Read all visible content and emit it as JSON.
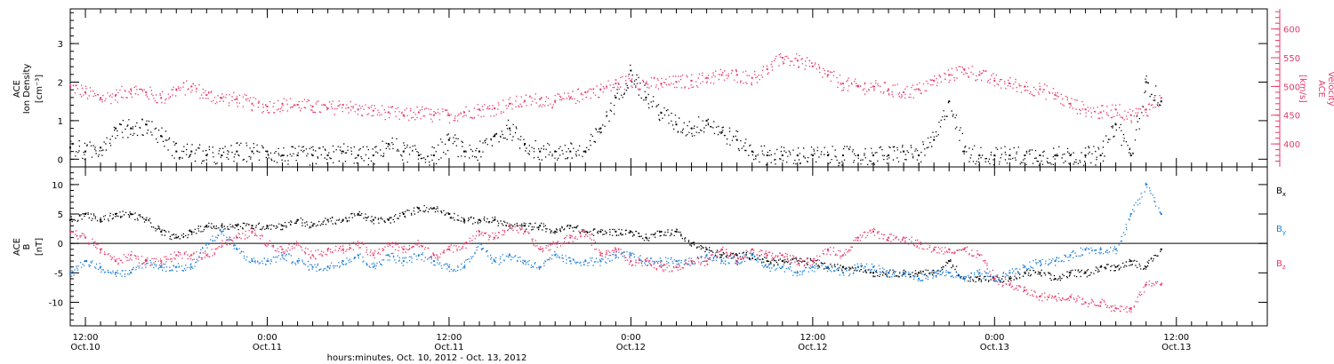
{
  "colors": {
    "ink": "#000000",
    "velocity": "#e8396a",
    "by": "#1e7fd9",
    "bz": "#e8396a",
    "bx": "#000000"
  },
  "panels": {
    "top": {
      "left_label_lines": [
        "ACE",
        "Ion Density"
      ],
      "left_unit": "[cm⁻³]",
      "right_label_lines": [
        "ACE",
        "Velocity"
      ],
      "right_unit": "[km/s]"
    },
    "bottom": {
      "label_lines": [
        "ACE",
        "B"
      ],
      "unit": "[nT]",
      "legend": [
        {
          "label": "B",
          "sub": "x",
          "color": "#000000"
        },
        {
          "label": "B",
          "sub": "y",
          "color": "#1e7fd9"
        },
        {
          "label": "B",
          "sub": "z",
          "color": "#e8396a"
        }
      ]
    }
  },
  "x_axis": {
    "title": "hours:minutes, Oct. 10, 2012 - Oct. 13, 2012",
    "ticks": [
      {
        "h": 0,
        "time": "12:00",
        "date": "Oct.10"
      },
      {
        "h": 12,
        "time": "0:00",
        "date": "Oct.11"
      },
      {
        "h": 24,
        "time": "12:00",
        "date": "Oct.11"
      },
      {
        "h": 36,
        "time": "0:00",
        "date": "Oct.12"
      },
      {
        "h": 48,
        "time": "12:00",
        "date": "Oct.12"
      },
      {
        "h": 60,
        "time": "0:00",
        "date": "Oct.13"
      },
      {
        "h": 72,
        "time": "12:00",
        "date": "Oct.13"
      }
    ]
  },
  "chart_data": [
    {
      "type": "scatter",
      "panel": "top",
      "xlim_hours": [
        -1,
        78
      ],
      "ylim": [
        -0.2,
        3.9
      ],
      "yticks": [
        0,
        1,
        2,
        3
      ],
      "ylim_right": [
        360,
        635
      ],
      "yticks_right": [
        400,
        450,
        500,
        550,
        600
      ],
      "series": [
        {
          "name": "Ion Density",
          "axis": "left",
          "x": [
            -1,
            0,
            1,
            2,
            3,
            4,
            5,
            6,
            7,
            8,
            9,
            10,
            11,
            12,
            13,
            14,
            15,
            16,
            17,
            18,
            19,
            20,
            21,
            22,
            23,
            24,
            25,
            26,
            27,
            28,
            29,
            30,
            31,
            32,
            33,
            34,
            35,
            36,
            37,
            38,
            39,
            40,
            41,
            42,
            43,
            44,
            45,
            46,
            47,
            48,
            49,
            50,
            51,
            52,
            53,
            54,
            55,
            56,
            57,
            58,
            59,
            60,
            61,
            62,
            63,
            64,
            65,
            66,
            67,
            68,
            69,
            70,
            71
          ],
          "y": [
            0.3,
            0.2,
            0.3,
            0.8,
            0.8,
            0.9,
            0.6,
            0.2,
            0.2,
            0.1,
            0.1,
            0.2,
            0.2,
            0.2,
            0.1,
            0.1,
            0.1,
            0.1,
            0.2,
            0.1,
            0.1,
            0.4,
            0.2,
            0.1,
            0.1,
            0.5,
            0.2,
            0.2,
            0.6,
            0.8,
            0.4,
            0.2,
            0.2,
            0.2,
            0.2,
            0.8,
            1.6,
            2.3,
            1.6,
            1.2,
            0.9,
            0.8,
            1.0,
            0.7,
            0.5,
            0.2,
            0.1,
            0.1,
            0.1,
            0.1,
            0.1,
            0.1,
            0.1,
            0.1,
            0.1,
            0.2,
            0.1,
            0.5,
            1.5,
            0.2,
            0.1,
            0.1,
            0.1,
            0.1,
            0.1,
            0.1,
            0.1,
            0.1,
            0.1,
            0.9,
            0.1,
            2.0,
            1.5
          ]
        },
        {
          "name": "Velocity",
          "axis": "right",
          "unit": "km/s",
          "x": [
            -1,
            0,
            1,
            2,
            3,
            4,
            5,
            6,
            7,
            8,
            9,
            10,
            11,
            12,
            13,
            14,
            15,
            16,
            17,
            18,
            19,
            20,
            21,
            22,
            23,
            24,
            25,
            26,
            27,
            28,
            29,
            30,
            31,
            32,
            33,
            34,
            35,
            36,
            37,
            38,
            39,
            40,
            41,
            42,
            43,
            44,
            45,
            46,
            47,
            48,
            49,
            50,
            51,
            52,
            53,
            54,
            55,
            56,
            57,
            58,
            59,
            60,
            61,
            62,
            63,
            64,
            65,
            66,
            67,
            68,
            69,
            70,
            71
          ],
          "y": [
            500,
            490,
            480,
            485,
            495,
            490,
            480,
            495,
            500,
            485,
            480,
            478,
            470,
            465,
            470,
            468,
            465,
            462,
            468,
            460,
            458,
            455,
            450,
            455,
            450,
            450,
            455,
            460,
            462,
            470,
            475,
            478,
            475,
            480,
            490,
            495,
            505,
            510,
            505,
            505,
            508,
            510,
            515,
            520,
            520,
            515,
            530,
            550,
            545,
            535,
            520,
            505,
            500,
            500,
            495,
            490,
            495,
            510,
            520,
            530,
            520,
            510,
            505,
            500,
            495,
            485,
            470,
            460,
            455,
            460,
            450,
            460,
            480
          ]
        }
      ]
    },
    {
      "type": "scatter",
      "panel": "bottom",
      "xlim_hours": [
        -1,
        78
      ],
      "ylim": [
        -14,
        13
      ],
      "yticks": [
        -10,
        -5,
        0,
        5,
        10
      ],
      "series": [
        {
          "name": "Bx",
          "x": [
            -1,
            0,
            1,
            2,
            3,
            4,
            5,
            6,
            7,
            8,
            9,
            10,
            11,
            12,
            13,
            14,
            15,
            16,
            17,
            18,
            19,
            20,
            21,
            22,
            23,
            24,
            25,
            26,
            27,
            28,
            29,
            30,
            31,
            32,
            33,
            34,
            35,
            36,
            37,
            38,
            39,
            40,
            41,
            42,
            43,
            44,
            45,
            46,
            47,
            48,
            49,
            50,
            51,
            52,
            53,
            54,
            55,
            56,
            57,
            58,
            59,
            60,
            61,
            62,
            63,
            64,
            65,
            66,
            67,
            68,
            69,
            70,
            71
          ],
          "y": [
            4,
            5,
            4,
            5,
            5,
            4,
            2,
            1,
            2,
            3,
            3,
            3,
            3,
            3,
            3,
            4,
            3,
            4,
            4,
            5,
            4,
            4,
            5,
            6,
            6,
            5,
            4,
            4,
            4,
            3,
            3,
            3,
            2,
            3,
            2,
            2,
            2,
            2,
            1,
            2,
            2,
            0,
            -1,
            -2,
            -2,
            -2,
            -3,
            -3,
            -3,
            -3,
            -4,
            -4,
            -4,
            -5,
            -5,
            -5,
            -5,
            -5,
            -3,
            -6,
            -6,
            -6,
            -6,
            -5,
            -5,
            -6,
            -5,
            -5,
            -4,
            -4,
            -3,
            -4,
            -1
          ]
        },
        {
          "name": "By",
          "x": [
            -1,
            0,
            1,
            2,
            3,
            4,
            5,
            6,
            7,
            8,
            9,
            10,
            11,
            12,
            13,
            14,
            15,
            16,
            17,
            18,
            19,
            20,
            21,
            22,
            23,
            24,
            25,
            26,
            27,
            28,
            29,
            30,
            31,
            32,
            33,
            34,
            35,
            36,
            37,
            38,
            39,
            40,
            41,
            42,
            43,
            44,
            45,
            46,
            47,
            48,
            49,
            50,
            51,
            52,
            53,
            54,
            55,
            56,
            57,
            58,
            59,
            60,
            61,
            62,
            63,
            64,
            65,
            66,
            67,
            68,
            69,
            70,
            71
          ],
          "y": [
            -5,
            -3,
            -4,
            -5,
            -5,
            -3,
            -4,
            -4,
            -4,
            0,
            2,
            -1,
            -3,
            -3,
            -2,
            -3,
            -4,
            -4,
            -3,
            -2,
            -4,
            -2,
            -3,
            -2,
            -3,
            -4,
            -4,
            0,
            -3,
            -2,
            -3,
            -4,
            -2,
            -3,
            -3,
            -3,
            -2,
            -2,
            -3,
            -3,
            -3,
            -3,
            -2,
            -3,
            -3,
            -2,
            -4,
            -4,
            -5,
            -4,
            -4,
            -5,
            -4,
            -4,
            -5,
            -5,
            -6,
            -5,
            -5,
            -6,
            -5,
            -6,
            -5,
            -4,
            -3,
            -3,
            -2,
            -1,
            -1,
            -1,
            5,
            10,
            5
          ]
        },
        {
          "name": "Bz",
          "x": [
            -1,
            0,
            1,
            2,
            3,
            4,
            5,
            6,
            7,
            8,
            9,
            10,
            11,
            12,
            13,
            14,
            15,
            16,
            17,
            18,
            19,
            20,
            21,
            22,
            23,
            24,
            25,
            26,
            27,
            28,
            29,
            30,
            31,
            32,
            33,
            34,
            35,
            36,
            37,
            38,
            39,
            40,
            41,
            42,
            43,
            44,
            45,
            46,
            47,
            48,
            49,
            50,
            51,
            52,
            53,
            54,
            55,
            56,
            57,
            58,
            59,
            60,
            61,
            62,
            63,
            64,
            65,
            66,
            67,
            68,
            69,
            70,
            71
          ],
          "y": [
            2,
            1,
            -1,
            -3,
            -2,
            -3,
            -3,
            -2,
            -2,
            -2,
            0,
            1,
            2,
            0,
            -1,
            0,
            -2,
            -1,
            -1,
            0,
            -2,
            0,
            -1,
            0,
            -2,
            -1,
            0,
            2,
            1,
            3,
            2,
            -1,
            0,
            1,
            2,
            -2,
            -1,
            -3,
            -3,
            -4,
            -4,
            -3,
            -3,
            -1,
            -3,
            -1,
            -2,
            -2,
            -3,
            -3,
            -1,
            -2,
            1,
            2,
            1,
            1,
            0,
            -1,
            -1,
            -1,
            -2,
            -6,
            -7,
            -8,
            -9,
            -9,
            -9,
            -10,
            -10,
            -11,
            -11,
            -7,
            -7
          ]
        }
      ]
    }
  ]
}
